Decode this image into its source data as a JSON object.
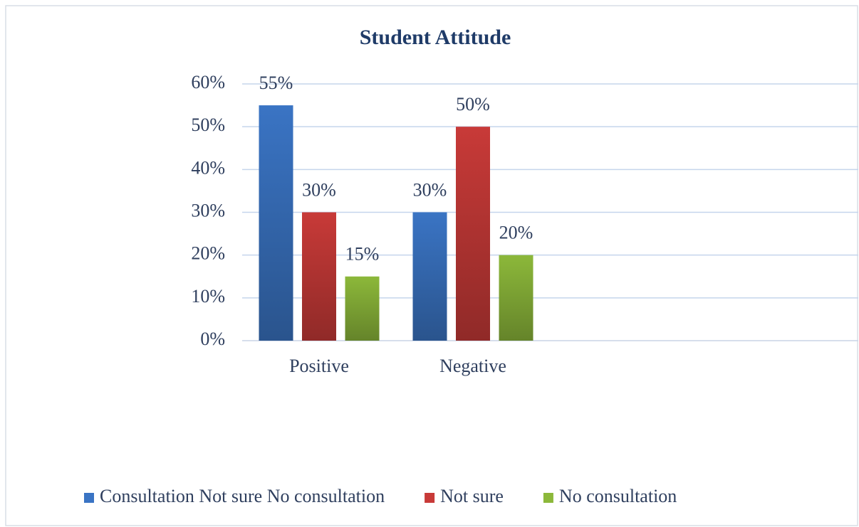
{
  "chart_data": {
    "type": "bar",
    "title": "Student Attitude",
    "categories": [
      "Positive",
      "Negative"
    ],
    "series": [
      {
        "name": "Consultation Not sure No consultation",
        "color": "#3a74c4",
        "values": [
          55,
          30
        ],
        "value_labels": [
          "55%",
          "30%"
        ]
      },
      {
        "name": "Not sure",
        "color": "#c83a38",
        "values": [
          30,
          50
        ],
        "value_labels": [
          "30%",
          "50%"
        ]
      },
      {
        "name": "No consultation",
        "color": "#8cb83a",
        "values": [
          15,
          20
        ],
        "value_labels": [
          "15%",
          "20%"
        ]
      }
    ],
    "ylim": [
      0,
      60
    ],
    "yticks": [
      {
        "value": 0,
        "label": "0%"
      },
      {
        "value": 10,
        "label": "10%"
      },
      {
        "value": 20,
        "label": "20%"
      },
      {
        "value": 30,
        "label": "30%"
      },
      {
        "value": 40,
        "label": "40%"
      },
      {
        "value": 50,
        "label": "50%"
      },
      {
        "value": 60,
        "label": "60%"
      }
    ],
    "grid": true,
    "legend": "bottom"
  }
}
